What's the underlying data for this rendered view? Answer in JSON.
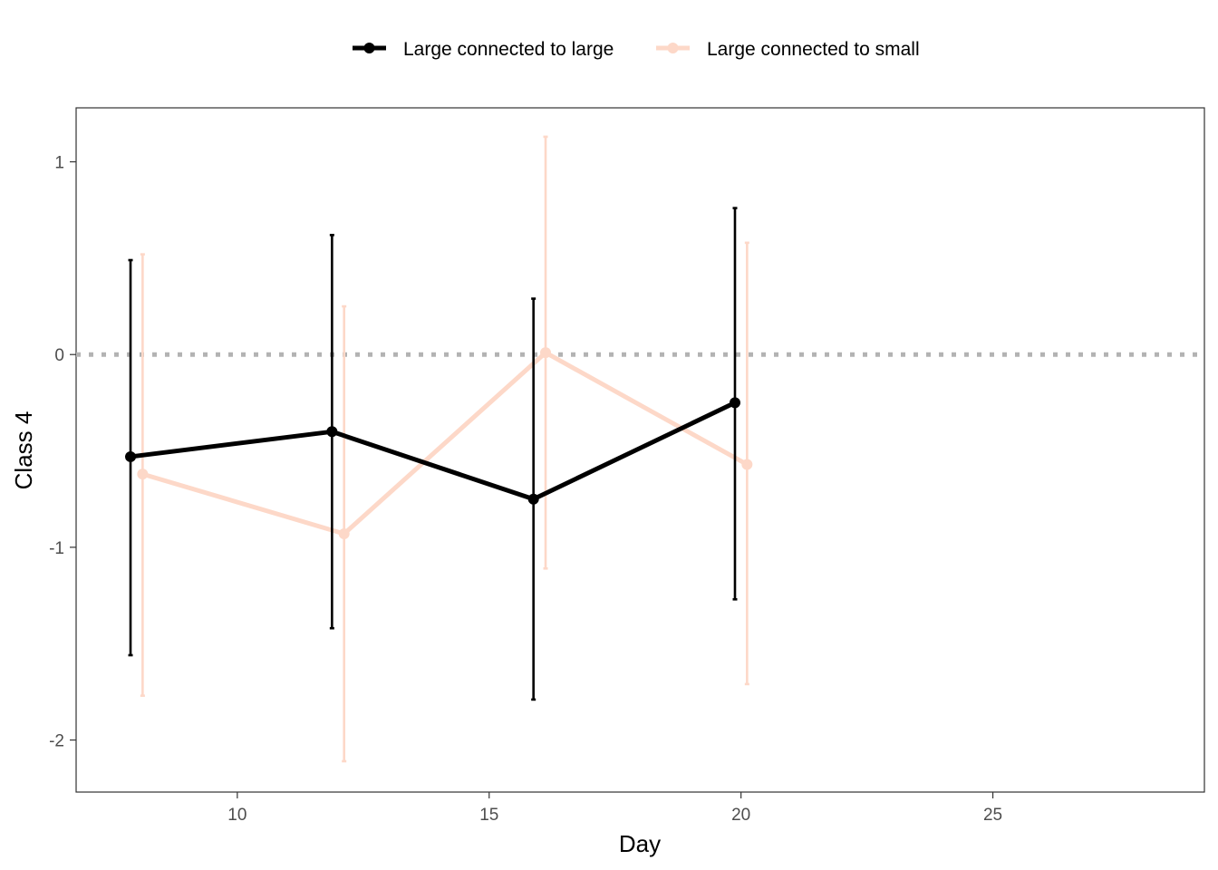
{
  "chart_data": {
    "type": "line",
    "xlabel": "Day",
    "ylabel": "Class 4",
    "xlim": [
      6.8,
      29.2
    ],
    "ylim": [
      -2.27,
      1.28
    ],
    "x_ticks": [
      10,
      15,
      20,
      25
    ],
    "y_ticks": [
      -2,
      -1,
      0,
      1
    ],
    "reference_line": {
      "y": 0,
      "style": "dotted",
      "color": "#b3b3b3"
    },
    "legend_position": "top",
    "grid": false,
    "series": [
      {
        "name": "Large connected to large",
        "color": "#000000",
        "x": [
          7.88,
          11.88,
          15.88,
          19.88
        ],
        "y": [
          -0.53,
          -0.4,
          -0.75,
          -0.25
        ],
        "ymin": [
          -1.56,
          -1.42,
          -1.79,
          -1.27
        ],
        "ymax": [
          0.49,
          0.62,
          0.29,
          0.76
        ]
      },
      {
        "name": "Large connected to small",
        "color": "#fdd8c8",
        "x": [
          8.12,
          12.12,
          16.12,
          20.12
        ],
        "y": [
          -0.62,
          -0.93,
          0.01,
          -0.57
        ],
        "ymin": [
          -1.77,
          -2.11,
          -1.11,
          -1.71
        ],
        "ymax": [
          0.52,
          0.25,
          1.13,
          0.58
        ]
      }
    ]
  }
}
